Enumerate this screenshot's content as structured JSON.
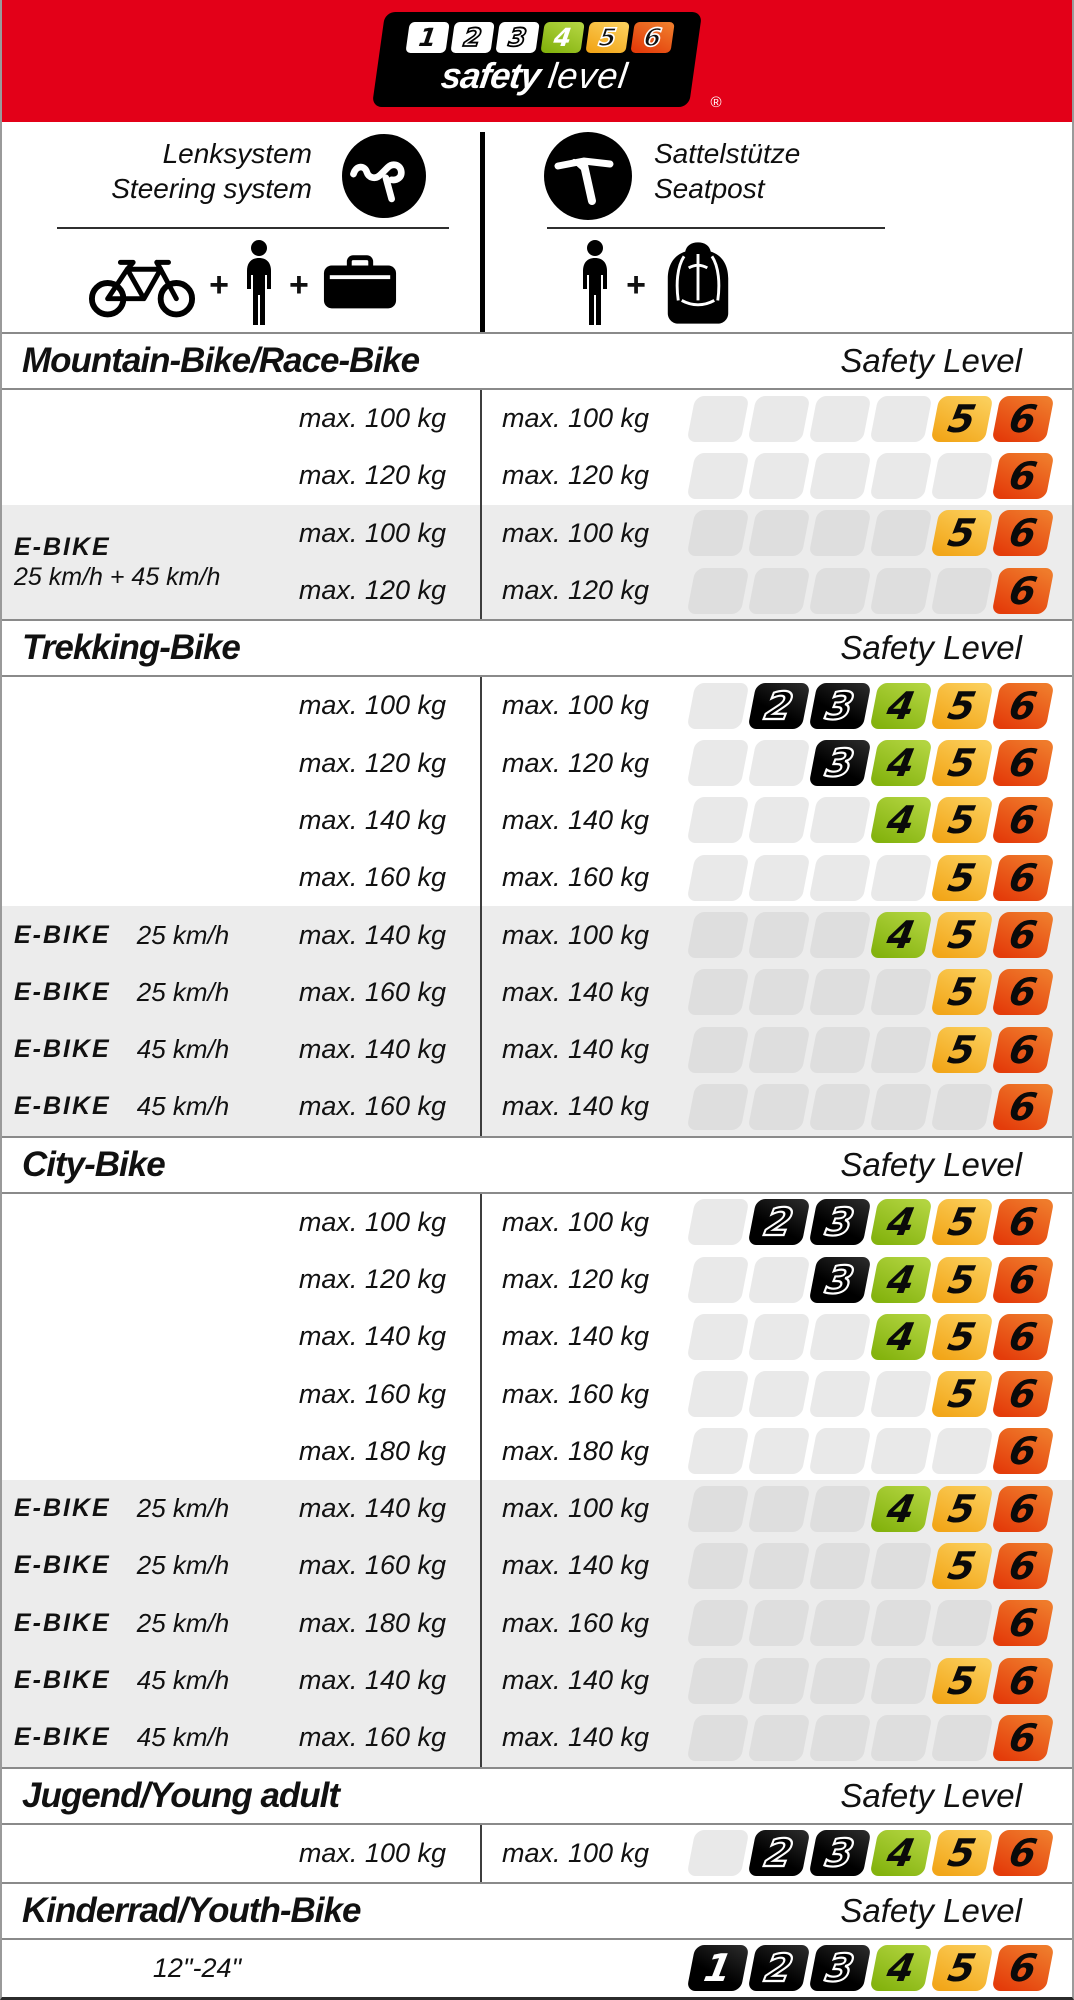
{
  "palette": {
    "banner_red": "#e30018",
    "row_gray": "#ececec",
    "placeholder_on_white": "#e9e9e9",
    "placeholder_on_gray": "#dedede",
    "level_colors": {
      "1": [
        "#2e2e2e",
        "#000000"
      ],
      "2": [
        "#2e2e2e",
        "#000000"
      ],
      "3": [
        "#2e2e2e",
        "#000000"
      ],
      "4": [
        "#b2d440",
        "#84b30e"
      ],
      "5": [
        "#fbce5a",
        "#f2a619"
      ],
      "6": [
        "#ef7b2b",
        "#e43c0a"
      ]
    }
  },
  "logo": {
    "digits": [
      {
        "n": "1",
        "style": "white-solid-black"
      },
      {
        "n": "2",
        "style": "white-outline"
      },
      {
        "n": "3",
        "style": "white-outline"
      },
      {
        "n": "4",
        "style": "green-solid-white"
      },
      {
        "n": "5",
        "style": "amber-outline"
      },
      {
        "n": "6",
        "style": "orange-outline"
      }
    ],
    "brand_bold": "safety",
    "brand_light": "level",
    "registered": "®"
  },
  "header": {
    "plus_sign": "+",
    "left": {
      "title_de": "Lenksystem",
      "title_en": "Steering system"
    },
    "right": {
      "title_de": "Sattelstütze",
      "title_en": "Seatpost"
    }
  },
  "chart_data": {
    "type": "table",
    "title": "safety level",
    "safety_label": "Safety Level",
    "levels_scale": [
      1,
      2,
      3,
      4,
      5,
      6
    ],
    "columns": [
      "category",
      "steering system max load",
      "seatpost max load",
      "safety levels"
    ],
    "sections": [
      {
        "title": "Mountain-Bike/Race-Bike",
        "rows": [
          {
            "shaded": false,
            "left": "max. 100 kg",
            "right": "max. 100 kg",
            "levels": [
              5,
              6
            ]
          },
          {
            "shaded": false,
            "left": "max. 120 kg",
            "right": "max. 120 kg",
            "levels": [
              6
            ]
          },
          {
            "shaded": true,
            "group_label": {
              "name": "E-BIKE",
              "sub": "25 km/h + 45 km/h"
            },
            "left": "max. 100 kg",
            "right": "max. 100 kg",
            "levels": [
              5,
              6
            ]
          },
          {
            "shaded": true,
            "left": "max. 120 kg",
            "right": "max. 120 kg",
            "levels": [
              6
            ]
          }
        ]
      },
      {
        "title": "Trekking-Bike",
        "rows": [
          {
            "shaded": false,
            "left": "max. 100 kg",
            "right": "max. 100 kg",
            "levels": [
              2,
              3,
              4,
              5,
              6
            ]
          },
          {
            "shaded": false,
            "left": "max. 120 kg",
            "right": "max. 120 kg",
            "levels": [
              3,
              4,
              5,
              6
            ]
          },
          {
            "shaded": false,
            "left": "max. 140 kg",
            "right": "max. 140 kg",
            "levels": [
              4,
              5,
              6
            ]
          },
          {
            "shaded": false,
            "left": "max. 160 kg",
            "right": "max. 160 kg",
            "levels": [
              5,
              6
            ]
          },
          {
            "shaded": true,
            "ebike": "E-BIKE",
            "speed": "25 km/h",
            "left": "max. 140 kg",
            "right": "max. 100 kg",
            "levels": [
              4,
              5,
              6
            ]
          },
          {
            "shaded": true,
            "ebike": "E-BIKE",
            "speed": "25 km/h",
            "left": "max. 160 kg",
            "right": "max. 140 kg",
            "levels": [
              5,
              6
            ]
          },
          {
            "shaded": true,
            "ebike": "E-BIKE",
            "speed": "45 km/h",
            "left": "max. 140 kg",
            "right": "max. 140 kg",
            "levels": [
              5,
              6
            ]
          },
          {
            "shaded": true,
            "ebike": "E-BIKE",
            "speed": "45 km/h",
            "left": "max. 160 kg",
            "right": "max. 140 kg",
            "levels": [
              6
            ]
          }
        ]
      },
      {
        "title": "City-Bike",
        "rows": [
          {
            "shaded": false,
            "left": "max. 100 kg",
            "right": "max. 100 kg",
            "levels": [
              2,
              3,
              4,
              5,
              6
            ]
          },
          {
            "shaded": false,
            "left": "max. 120 kg",
            "right": "max. 120 kg",
            "levels": [
              3,
              4,
              5,
              6
            ]
          },
          {
            "shaded": false,
            "left": "max. 140 kg",
            "right": "max. 140 kg",
            "levels": [
              4,
              5,
              6
            ]
          },
          {
            "shaded": false,
            "left": "max. 160 kg",
            "right": "max. 160 kg",
            "levels": [
              5,
              6
            ]
          },
          {
            "shaded": false,
            "left": "max. 180 kg",
            "right": "max. 180 kg",
            "levels": [
              6
            ]
          },
          {
            "shaded": true,
            "ebike": "E-BIKE",
            "speed": "25 km/h",
            "left": "max. 140 kg",
            "right": "max. 100 kg",
            "levels": [
              4,
              5,
              6
            ]
          },
          {
            "shaded": true,
            "ebike": "E-BIKE",
            "speed": "25 km/h",
            "left": "max. 160 kg",
            "right": "max. 140 kg",
            "levels": [
              5,
              6
            ]
          },
          {
            "shaded": true,
            "ebike": "E-BIKE",
            "speed": "25 km/h",
            "left": "max. 180 kg",
            "right": "max. 160 kg",
            "levels": [
              6
            ]
          },
          {
            "shaded": true,
            "ebike": "E-BIKE",
            "speed": "45 km/h",
            "left": "max. 140 kg",
            "right": "max. 140 kg",
            "levels": [
              5,
              6
            ]
          },
          {
            "shaded": true,
            "ebike": "E-BIKE",
            "speed": "45 km/h",
            "left": "max. 160 kg",
            "right": "max. 140 kg",
            "levels": [
              6
            ]
          }
        ]
      },
      {
        "title": "Jugend/Young adult",
        "rows": [
          {
            "shaded": false,
            "left": "max. 100 kg",
            "right": "max. 100 kg",
            "levels": [
              2,
              3,
              4,
              5,
              6
            ]
          }
        ]
      },
      {
        "title": "Kinderrad/Youth-Bike",
        "rows": [
          {
            "shaded": false,
            "center_left": "12\"-24\"",
            "no_divider": true,
            "levels": [
              1,
              2,
              3,
              4,
              5,
              6
            ]
          }
        ]
      }
    ]
  }
}
